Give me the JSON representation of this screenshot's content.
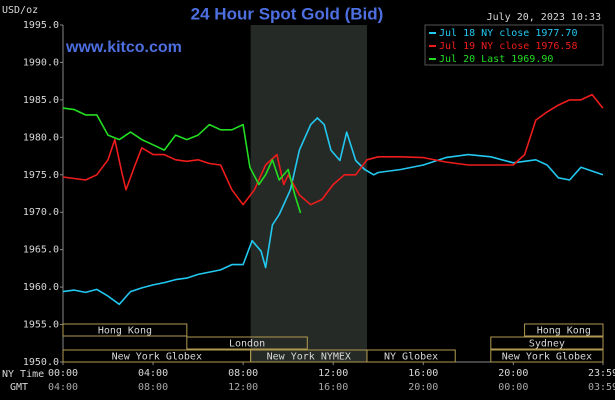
{
  "chart_data": {
    "type": "line",
    "title": "24 Hour Spot Gold (Bid)",
    "unit_label": "USD/oz",
    "date_label": "July 20, 2023 10:33",
    "watermark": "www.kitco.com",
    "xlabel": "NY Time",
    "x2label": "GMT",
    "xlim": [
      0,
      23.983
    ],
    "ylim": [
      1950,
      1995
    ],
    "yticks": [
      {
        "value": 1950,
        "label": "1950.0"
      },
      {
        "value": 1955,
        "label": "1955.0"
      },
      {
        "value": 1960,
        "label": "1960.0"
      },
      {
        "value": 1965,
        "label": "1965.0"
      },
      {
        "value": 1970,
        "label": "1970.0"
      },
      {
        "value": 1975,
        "label": "1975.0"
      },
      {
        "value": 1980,
        "label": "1980.0"
      },
      {
        "value": 1985,
        "label": "1985.0"
      },
      {
        "value": 1990,
        "label": "1990.0"
      },
      {
        "value": 1995,
        "label": "1995.0"
      }
    ],
    "xticks": [
      {
        "value": 0,
        "label": "00:00"
      },
      {
        "value": 4,
        "label": "04:00"
      },
      {
        "value": 8,
        "label": "08:00"
      },
      {
        "value": 12,
        "label": "12:00"
      },
      {
        "value": 16,
        "label": "16:00"
      },
      {
        "value": 20,
        "label": "20:00"
      },
      {
        "value": 23.983,
        "label": "23:59"
      }
    ],
    "x2ticks": [
      {
        "value": 0,
        "label": "04:00"
      },
      {
        "value": 4,
        "label": "08:00"
      },
      {
        "value": 8,
        "label": "12:00"
      },
      {
        "value": 12,
        "label": "16:00"
      },
      {
        "value": 16,
        "label": "20:00"
      },
      {
        "value": 20,
        "label": "00:00"
      },
      {
        "value": 23.983,
        "label": "03:59"
      }
    ],
    "grid": false,
    "shaded_x": [
      8.333,
      13.5
    ],
    "sessions": [
      [
        {
          "name": "Hong Kong",
          "start": 0,
          "end": 5.5
        },
        {
          "name": "Hong Kong",
          "start": 20.5,
          "end": 23.983
        }
      ],
      [
        {
          "name": "London",
          "start": 5.5,
          "end": 10.85
        },
        {
          "name": "Sydney",
          "start": 19.0,
          "end": 23.983
        }
      ],
      [
        {
          "name": "New York Globex",
          "start": 0,
          "end": 8.333
        },
        {
          "name": "New York NYMEX",
          "start": 8.333,
          "end": 13.5
        },
        {
          "name": "NY Globex",
          "start": 13.5,
          "end": 17.42
        },
        {
          "name": "New York Globex",
          "start": 19.0,
          "end": 23.983
        }
      ]
    ],
    "series": [
      {
        "name": "Jul 18 NY close 1977.70",
        "color": "#22c8f0",
        "x": [
          0,
          0.5,
          1,
          1.5,
          2,
          2.5,
          3,
          3.5,
          4,
          4.5,
          5,
          5.5,
          6,
          6.5,
          7,
          7.5,
          8,
          8.4,
          8.8,
          9,
          9.3,
          9.6,
          10.1,
          10.5,
          11,
          11.3,
          11.6,
          11.9,
          12.3,
          12.6,
          13,
          13.4,
          13.8,
          14,
          15,
          16,
          17,
          18,
          19,
          20,
          21,
          21.5,
          22,
          22.5,
          23,
          23.98
        ],
        "values": [
          1959.4,
          1959.6,
          1959.3,
          1959.7,
          1958.8,
          1957.7,
          1959.4,
          1959.9,
          1960.3,
          1960.6,
          1961.0,
          1961.2,
          1961.7,
          1962.0,
          1962.3,
          1963.0,
          1963.0,
          1966.2,
          1964.8,
          1962.6,
          1968.3,
          1969.7,
          1973.0,
          1978.3,
          1981.7,
          1982.6,
          1981.7,
          1978.3,
          1976.9,
          1980.7,
          1976.9,
          1975.7,
          1975.0,
          1975.3,
          1975.7,
          1976.3,
          1977.3,
          1977.7,
          1977.4,
          1976.6,
          1977.0,
          1976.3,
          1974.6,
          1974.3,
          1976.0,
          1975.0
        ]
      },
      {
        "name": "Jul 19 NY close 1976.58",
        "color": "#ee1c1c",
        "x": [
          0,
          0.5,
          1,
          1.5,
          2,
          2.3,
          2.6,
          2.8,
          3.2,
          3.5,
          4,
          4.5,
          5,
          5.5,
          6,
          6.5,
          7,
          7.5,
          8,
          8.5,
          9,
          9.5,
          9.8,
          10,
          10.5,
          11,
          11.5,
          12,
          12.5,
          13,
          13.5,
          14,
          15,
          16,
          17,
          18,
          19,
          20,
          20.5,
          21,
          21.5,
          22,
          22.5,
          23,
          23.5,
          23.98
        ],
        "values": [
          1974.7,
          1974.5,
          1974.3,
          1975.0,
          1977.0,
          1979.7,
          1975.5,
          1973.0,
          1976.3,
          1978.6,
          1977.7,
          1977.7,
          1977.0,
          1976.8,
          1977.0,
          1976.5,
          1976.3,
          1973.0,
          1971.0,
          1973.0,
          1976.3,
          1977.7,
          1973.7,
          1975.0,
          1972.3,
          1971.0,
          1971.7,
          1973.7,
          1975.0,
          1975.0,
          1977.0,
          1977.4,
          1977.4,
          1977.3,
          1976.7,
          1976.3,
          1976.3,
          1976.3,
          1977.7,
          1982.3,
          1983.4,
          1984.3,
          1985.0,
          1985.0,
          1985.7,
          1983.9
        ]
      },
      {
        "name": "Jul 20 Last 1969.90",
        "color": "#22dd22",
        "x": [
          0,
          0.5,
          1,
          1.5,
          2,
          2.5,
          3,
          3.5,
          4,
          4.5,
          5,
          5.5,
          6,
          6.5,
          7,
          7.5,
          8,
          8.3,
          8.7,
          9,
          9.3,
          9.6,
          10,
          10.3,
          10.55
        ],
        "values": [
          1983.9,
          1983.7,
          1983.0,
          1983.0,
          1980.3,
          1979.7,
          1980.7,
          1979.7,
          1979.0,
          1978.3,
          1980.3,
          1979.7,
          1980.3,
          1981.7,
          1981.0,
          1981.0,
          1981.7,
          1976.0,
          1973.7,
          1975.0,
          1977.0,
          1974.3,
          1975.7,
          1972.3,
          1969.9
        ]
      }
    ]
  }
}
